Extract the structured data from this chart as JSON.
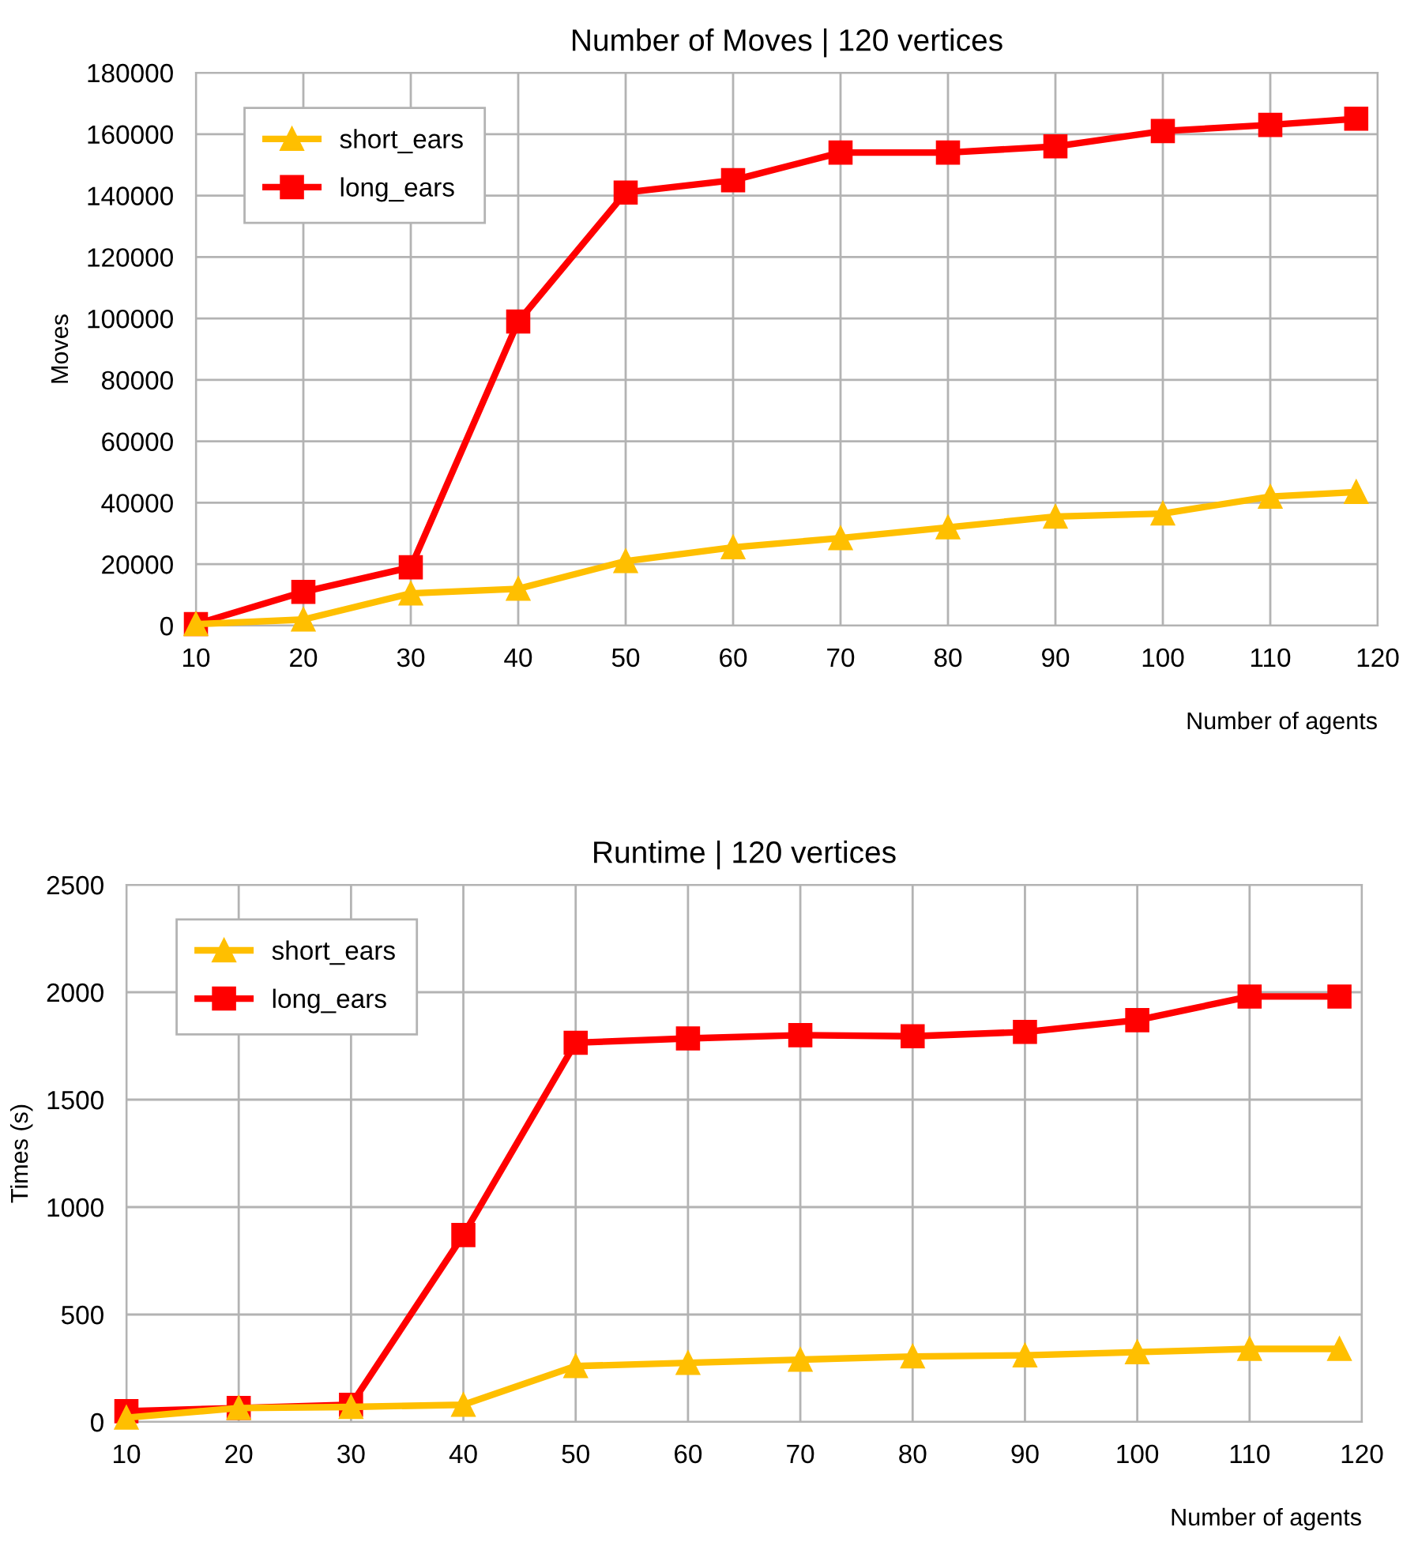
{
  "chart_data": [
    {
      "type": "line",
      "title": "Number of Moves | 120 vertices",
      "xlabel": "Number of agents",
      "ylabel": "Moves",
      "x": [
        10,
        20,
        30,
        40,
        50,
        60,
        70,
        80,
        90,
        100,
        110,
        118
      ],
      "series": [
        {
          "name": "short_ears",
          "color": "#ffbf00",
          "marker": "triangle",
          "values": [
            500,
            2000,
            10500,
            12000,
            21000,
            25500,
            28500,
            32000,
            35500,
            36500,
            42000,
            43500
          ]
        },
        {
          "name": "long_ears",
          "color": "#ff0000",
          "marker": "square",
          "values": [
            500,
            11000,
            19000,
            99000,
            141000,
            145000,
            154000,
            154000,
            156000,
            161000,
            163000,
            165000
          ]
        }
      ],
      "xlim": [
        10,
        120
      ],
      "xticks": [
        10,
        20,
        30,
        40,
        50,
        60,
        70,
        80,
        90,
        100,
        110,
        120
      ],
      "ylim": [
        0,
        180000
      ],
      "yticks": [
        0,
        20000,
        40000,
        60000,
        80000,
        100000,
        120000,
        140000,
        160000,
        180000
      ],
      "grid": true,
      "legend": "top left"
    },
    {
      "type": "line",
      "title": "Runtime | 120 vertices",
      "xlabel": "Number of agents",
      "ylabel": "Times (s)",
      "x": [
        10,
        20,
        30,
        40,
        50,
        60,
        70,
        80,
        90,
        100,
        110,
        118
      ],
      "series": [
        {
          "name": "short_ears",
          "color": "#ffbf00",
          "marker": "triangle",
          "values": [
            20,
            65,
            70,
            80,
            260,
            275,
            290,
            305,
            310,
            325,
            340,
            340
          ]
        },
        {
          "name": "long_ears",
          "color": "#ff0000",
          "marker": "square",
          "values": [
            50,
            65,
            80,
            870,
            1765,
            1785,
            1800,
            1795,
            1815,
            1870,
            1980,
            1980
          ]
        }
      ],
      "xlim": [
        10,
        120
      ],
      "xticks": [
        10,
        20,
        30,
        40,
        50,
        60,
        70,
        80,
        90,
        100,
        110,
        120
      ],
      "ylim": [
        0,
        2500
      ],
      "yticks": [
        0,
        500,
        1000,
        1500,
        2000,
        2500
      ],
      "grid": true,
      "legend": "top left"
    }
  ]
}
